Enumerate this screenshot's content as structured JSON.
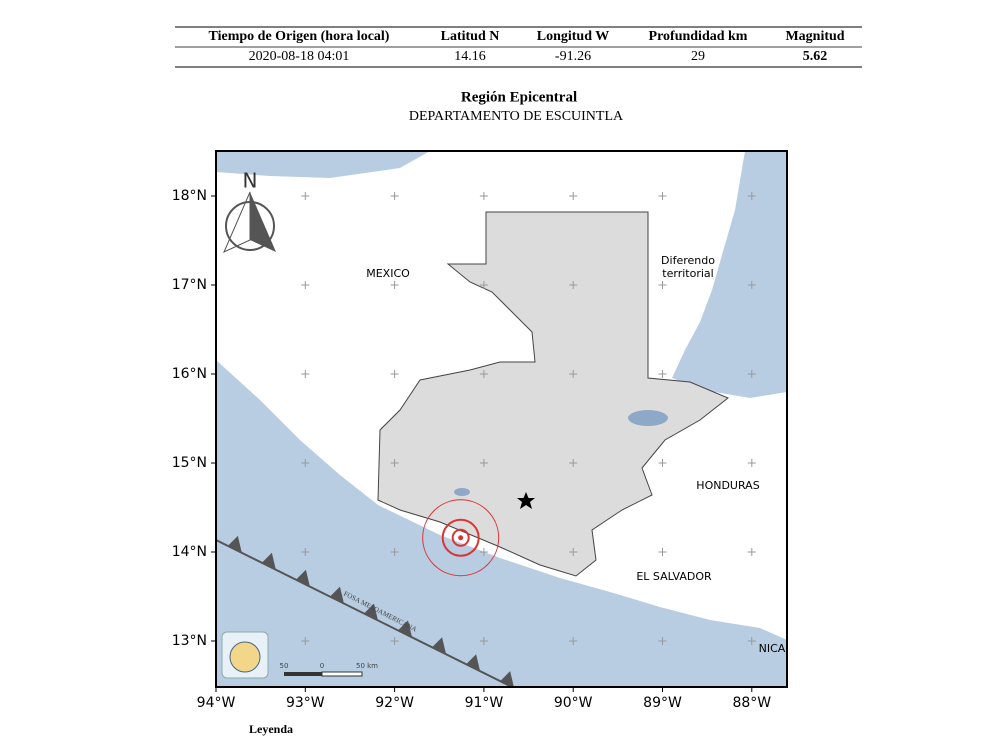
{
  "table": {
    "headers": [
      "Tiempo de Origen (hora local)",
      "Latitud N",
      "Longitud W",
      "Profundidad km",
      "Magnitud"
    ],
    "rows": [
      [
        "2020-08-18 04:01",
        "14.16",
        "-91.26",
        "29",
        "5.62"
      ]
    ]
  },
  "region": {
    "title": "Región Epicentral",
    "department": "DEPARTAMENTO DE ESCUINTLA"
  },
  "map": {
    "lat_labels": [
      "18°N",
      "17°N",
      "16°N",
      "15°N",
      "14°N",
      "13°N"
    ],
    "lon_labels": [
      "94°W",
      "93°W",
      "92°W",
      "91°W",
      "90°W",
      "89°W",
      "88°W"
    ],
    "north": "N",
    "places": [
      {
        "lines": [
          "MEXICO"
        ]
      },
      {
        "lines": [
          "Diferendo",
          "territorial"
        ]
      },
      {
        "lines": [
          "HONDURAS"
        ]
      },
      {
        "lines": [
          "EL SALVADOR"
        ]
      },
      {
        "lines": [
          "NICA"
        ]
      }
    ],
    "trench": "FOSA MESOAMERICANA",
    "scale": [
      "50",
      "0",
      "50 km"
    ]
  },
  "legend": {
    "title": "Leyenda"
  }
}
